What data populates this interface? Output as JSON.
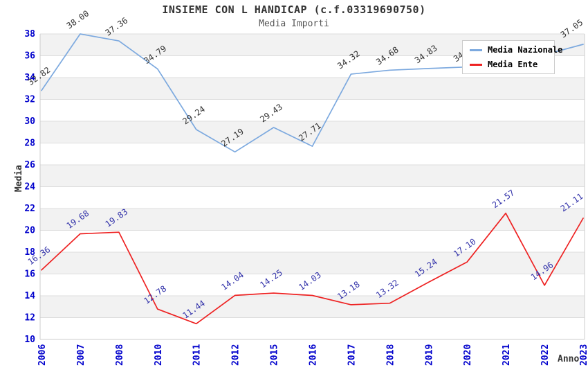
{
  "page": {
    "title": "INSIEME CON L HANDICAP (c.f.03319690750)",
    "subtitle": "Media Importi"
  },
  "legend": {
    "items": [
      {
        "label": "Media Nazionale",
        "color": "#7CA9DF"
      },
      {
        "label": "Media Ente",
        "color": "#EE2222"
      }
    ]
  },
  "chart_data": {
    "type": "line",
    "title": "INSIEME CON L HANDICAP (c.f.03319690750)",
    "subtitle": "Media Importi",
    "xlabel": "Anno",
    "ylabel": "Media",
    "ylim": [
      10,
      38
    ],
    "yticks": [
      10,
      12,
      14,
      16,
      18,
      20,
      22,
      24,
      26,
      28,
      30,
      32,
      34,
      36,
      38
    ],
    "grid": true,
    "legend_position": "top-right",
    "band_colors": [
      "#F2F2F2",
      "#FFFFFF"
    ],
    "gridline_color": "#DDDDDD",
    "border_color": "#CCCCCC",
    "axis_tick_color": "#0000CC",
    "categories": [
      "2006",
      "2007",
      "2008",
      "2010",
      "2011",
      "2012",
      "2015",
      "2016",
      "2017",
      "2018",
      "2019",
      "2020",
      "2021",
      "2022",
      "2023"
    ],
    "series": [
      {
        "name": "Media Nazionale",
        "color": "#7CA9DF",
        "label_color": "#333333",
        "values": [
          32.82,
          38.0,
          37.36,
          34.79,
          29.24,
          27.19,
          29.43,
          27.71,
          34.32,
          34.68,
          34.83,
          34.97,
          35.5,
          36.1,
          37.05
        ],
        "labels": [
          "32.82",
          "38.00",
          "37.36",
          "34.79",
          "29.24",
          "27.19",
          "29.43",
          "27.71",
          "34.32",
          "34.68",
          "34.83",
          "34.97",
          null,
          null,
          "37.05"
        ]
      },
      {
        "name": "Media Ente",
        "color": "#EE2222",
        "label_color": "#3333AA",
        "values": [
          16.36,
          19.68,
          19.83,
          12.78,
          11.44,
          14.04,
          14.25,
          14.03,
          13.18,
          13.32,
          15.24,
          17.1,
          21.57,
          14.96,
          21.11
        ],
        "labels": [
          "16.36",
          "19.68",
          "19.83",
          "12.78",
          "11.44",
          "14.04",
          "14.25",
          "14.03",
          "13.18",
          "13.32",
          "15.24",
          "17.10",
          "21.57",
          "14.96",
          "21.11"
        ]
      }
    ]
  }
}
